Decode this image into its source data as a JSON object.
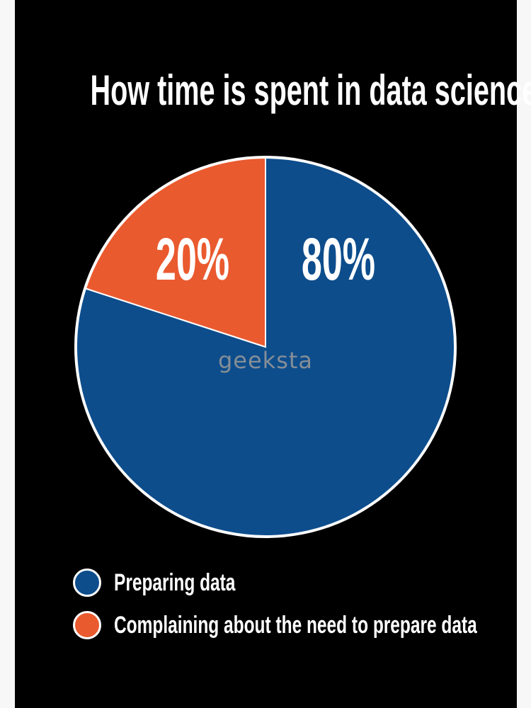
{
  "chart_data": {
    "type": "pie",
    "title": "How time is spent in data science",
    "slices": [
      {
        "label": "Preparing data",
        "value": 80,
        "display": "80%",
        "color": "#0d4d8c"
      },
      {
        "label": "Complaining about the need to prepare data",
        "value": 20,
        "display": "20%",
        "color": "#ea5a2f"
      }
    ],
    "legend_placement": "bottom-left"
  },
  "watermark": "geeksta",
  "colors": {
    "background": "#000000",
    "outline": "#ffffff"
  }
}
